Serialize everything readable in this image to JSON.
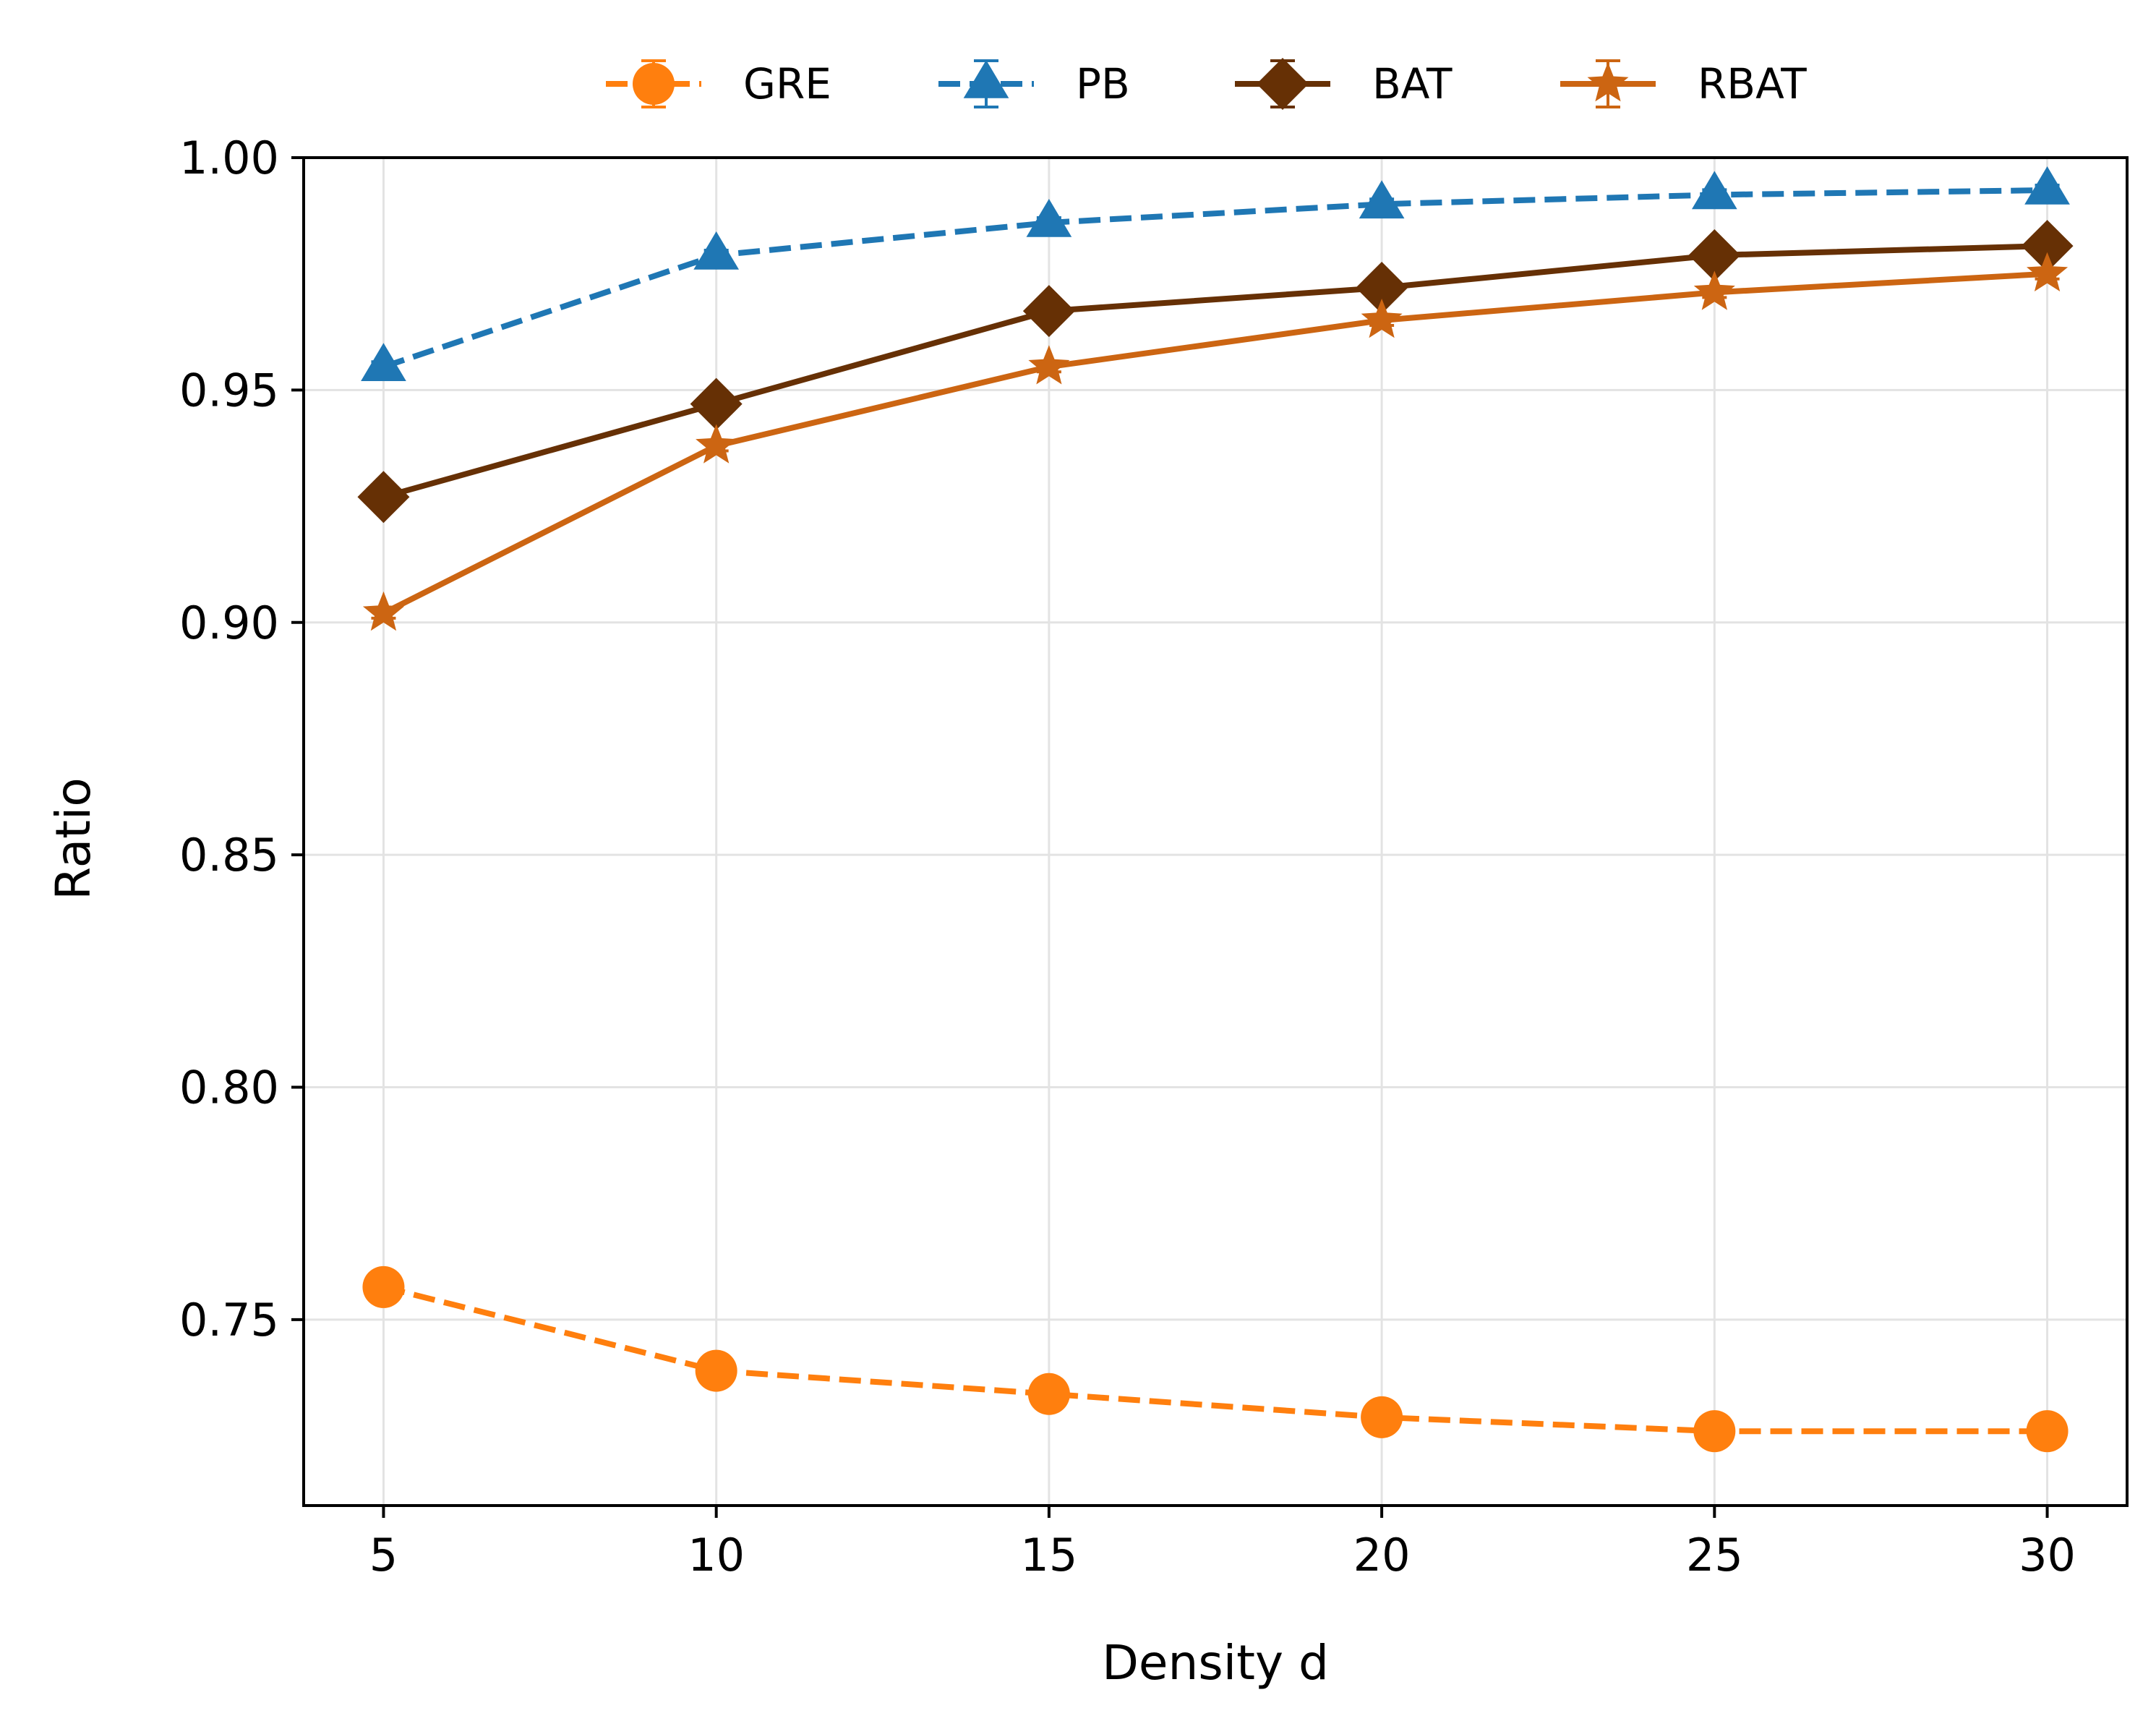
{
  "chart_data": {
    "type": "line",
    "title": "",
    "xlabel": "Density d",
    "ylabel": "Ratio",
    "x": [
      5,
      10,
      15,
      20,
      25,
      30
    ],
    "xticks": [
      "5",
      "10",
      "15",
      "20",
      "25",
      "30"
    ],
    "yticks": [
      "0.75",
      "0.80",
      "0.85",
      "0.90",
      "0.95",
      "1.00"
    ],
    "xlim": [
      3.8,
      31.2
    ],
    "ylim": [
      0.71,
      1.0
    ],
    "grid": true,
    "legend_position": "top",
    "series": [
      {
        "name": "GRE",
        "color": "#ff7f0e",
        "marker": "circle",
        "dash": true,
        "values": [
          0.757,
          0.739,
          0.734,
          0.729,
          0.726,
          0.726
        ]
      },
      {
        "name": "PB",
        "color": "#1f77b4",
        "marker": "triangle",
        "dash": true,
        "values": [
          0.955,
          0.979,
          0.986,
          0.99,
          0.992,
          0.993
        ]
      },
      {
        "name": "BAT",
        "color": "#663005",
        "marker": "diamond",
        "dash": false,
        "values": [
          0.927,
          0.947,
          0.967,
          0.972,
          0.979,
          0.981
        ]
      },
      {
        "name": "RBAT",
        "color": "#cc6512",
        "marker": "star",
        "dash": false,
        "values": [
          0.902,
          0.938,
          0.955,
          0.965,
          0.971,
          0.975
        ]
      }
    ]
  }
}
